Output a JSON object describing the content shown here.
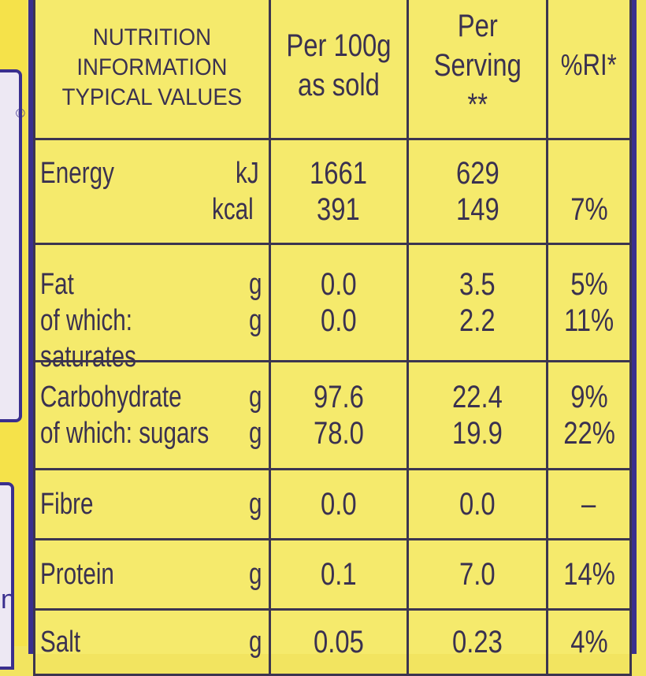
{
  "header": {
    "title_lines": [
      "NUTRITION",
      "INFORMATION",
      "TYPICAL VALUES"
    ],
    "col_per100_lines": [
      "Per 100g",
      "as sold"
    ],
    "col_serving_lines": [
      "Per",
      "Serving **"
    ],
    "col_ri": "%RI*"
  },
  "rows": {
    "energy": {
      "name": "Energy",
      "unit_kj": "kJ",
      "unit_kcal": "kcal",
      "per100_kj": "1661",
      "per100_kcal": "391",
      "serving_kj": "629",
      "serving_kcal": "149",
      "ri_kcal": "7%"
    },
    "fat": {
      "name": "Fat",
      "unit": "g",
      "per100": "0.0",
      "serving": "3.5",
      "ri": "5%",
      "sub_name": "of which: saturates",
      "sub_unit": "g",
      "sub_per100": "0.0",
      "sub_serving": "2.2",
      "sub_ri": "11%"
    },
    "carbohydrate": {
      "name": "Carbohydrate",
      "unit": "g",
      "per100": "97.6",
      "serving": "22.4",
      "ri": "9%",
      "sub_name": "of which: sugars",
      "sub_unit": "g",
      "sub_per100": "78.0",
      "sub_serving": "19.9",
      "sub_ri": "22%"
    },
    "fibre": {
      "name": "Fibre",
      "unit": "g",
      "per100": "0.0",
      "serving": "0.0",
      "ri": "–"
    },
    "protein": {
      "name": "Protein",
      "unit": "g",
      "per100": "0.1",
      "serving": "7.0",
      "ri": "14%"
    },
    "salt": {
      "name": "Salt",
      "unit": "g",
      "per100": "0.05",
      "serving": "0.23",
      "ri": "4%"
    }
  },
  "edge": {
    "registered_mark": "®",
    "partial_letter": "n"
  },
  "colors": {
    "label_yellow": "#f5ea6c",
    "border_purple": "#3a2f8e",
    "ink": "#3a3150"
  }
}
